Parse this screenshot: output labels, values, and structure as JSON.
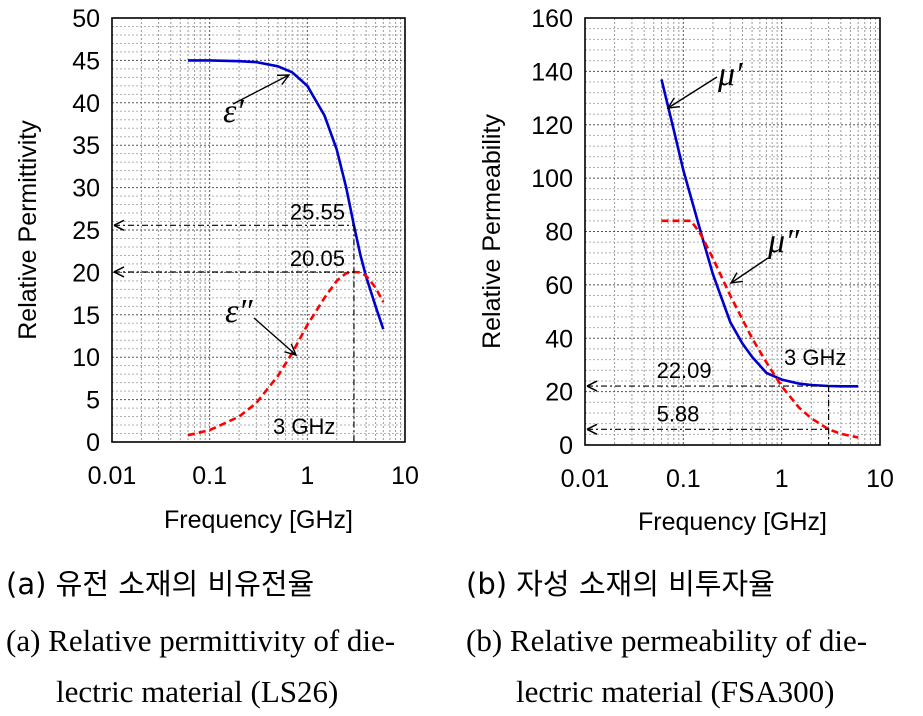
{
  "chart_data": [
    {
      "type": "line",
      "title": "",
      "xlabel": "Frequency [GHz]",
      "ylabel": "Relative Permittivity",
      "x_scale": "log",
      "xlim": [
        0.01,
        10
      ],
      "ylim": [
        0,
        50
      ],
      "x_ticks": [
        "0.01",
        "0.1",
        "1",
        "10"
      ],
      "y_ticks": [
        "0",
        "5",
        "10",
        "15",
        "20",
        "25",
        "30",
        "35",
        "40",
        "45",
        "50"
      ],
      "grid": true,
      "series": [
        {
          "name": "ε′",
          "color": "#0000cc",
          "style": "solid",
          "x": [
            0.06,
            0.1,
            0.2,
            0.3,
            0.5,
            0.7,
            1.0,
            1.5,
            2.0,
            2.5,
            3.0,
            3.5,
            4.0,
            5.0,
            6.0
          ],
          "y": [
            45.0,
            45.0,
            44.9,
            44.8,
            44.3,
            43.6,
            42.0,
            38.5,
            34.5,
            30.0,
            25.55,
            22.0,
            19.5,
            16.0,
            13.3
          ]
        },
        {
          "name": "ε″",
          "color": "#ff0000",
          "style": "dashed",
          "x": [
            0.06,
            0.1,
            0.2,
            0.3,
            0.5,
            0.7,
            1.0,
            1.5,
            2.0,
            2.5,
            3.0,
            3.5,
            4.0,
            5.0,
            6.0
          ],
          "y": [
            0.8,
            1.4,
            3.0,
            4.6,
            7.8,
            10.5,
            13.8,
            17.0,
            19.0,
            19.9,
            20.05,
            20.0,
            19.6,
            18.2,
            16.5
          ]
        }
      ],
      "annotations": {
        "value_1": "25.55",
        "value_2": "20.05",
        "freq_label": "3 GHz",
        "marker_x": 3,
        "marker_y1": 25.55,
        "marker_y2": 20.05
      }
    },
    {
      "type": "line",
      "title": "",
      "xlabel": "Frequency [GHz]",
      "ylabel": "Relative Permeability",
      "x_scale": "log",
      "xlim": [
        0.01,
        10
      ],
      "ylim": [
        0,
        160
      ],
      "x_ticks": [
        "0.01",
        "0.1",
        "1",
        "10"
      ],
      "y_ticks": [
        "0",
        "20",
        "40",
        "60",
        "80",
        "100",
        "120",
        "140",
        "160"
      ],
      "grid": true,
      "series": [
        {
          "name": "μ′",
          "color": "#0000cc",
          "style": "solid",
          "x": [
            0.06,
            0.08,
            0.1,
            0.15,
            0.2,
            0.3,
            0.4,
            0.5,
            0.7,
            1.0,
            1.5,
            2.0,
            3.0,
            4.0,
            6.0
          ],
          "y": [
            137,
            118,
            103,
            80,
            64,
            46,
            38,
            33,
            27,
            24.5,
            23,
            22.5,
            22.09,
            22.0,
            22.0
          ]
        },
        {
          "name": "μ″",
          "color": "#ff0000",
          "style": "dashed",
          "x": [
            0.06,
            0.1,
            0.12,
            0.15,
            0.2,
            0.3,
            0.5,
            0.7,
            1.0,
            1.5,
            2.0,
            3.0,
            4.0,
            6.0
          ],
          "y": [
            84,
            84,
            84,
            79,
            70,
            56,
            40,
            31,
            22,
            14,
            10,
            5.88,
            4.2,
            2.8
          ]
        }
      ],
      "annotations": {
        "value_1": "22.09",
        "value_2": "5.88",
        "freq_label": "3 GHz",
        "marker_x": 3,
        "marker_y1": 22.09,
        "marker_y2": 5.88
      }
    }
  ],
  "captions": {
    "a_ko": "(a) 유전 소재의 비유전율",
    "b_ko": "(b) 자성 소재의 비투자율",
    "a_en_line1": "(a) Relative permittivity of die-",
    "a_en_line2": "lectric material (LS26)",
    "b_en_line1": "(b) Relative permeability of die-",
    "b_en_line2": "lectric material (FSA300)"
  }
}
